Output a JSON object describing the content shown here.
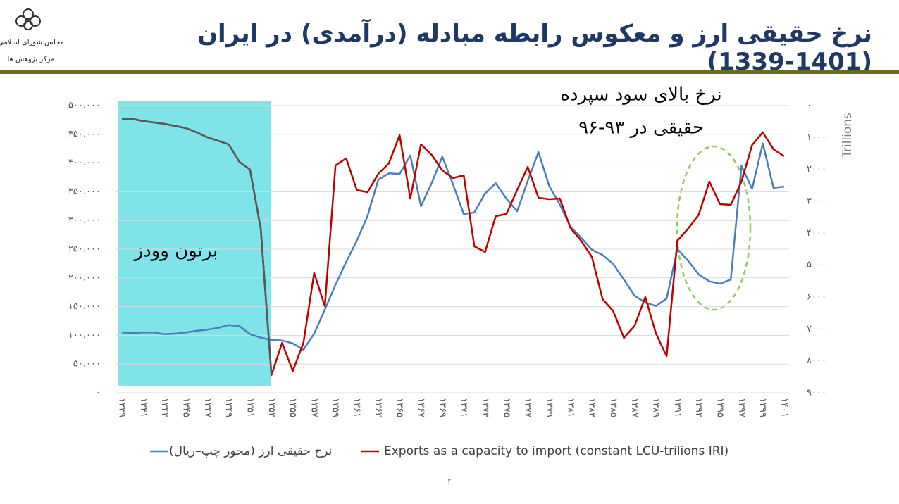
{
  "header": {
    "title": "نرخ حقیقی ارز و معکوس رابطه مبادله (درآمدی) در ایران (1401-1339)",
    "logo_line1": "مجلس شورای اسلامی",
    "logo_line2": "مرکز پژوهش ها"
  },
  "page_number": "۲",
  "chart_data": {
    "type": "line",
    "annotations": [
      "برتون وودز",
      "نرخ بالای سود سپرده",
      "حقیقی در ۹۳-۹۶"
    ],
    "y2_label": "Trillions",
    "categories": [
      "۱۳۳۹",
      null,
      "۱۳۴۱",
      null,
      "۱۳۴۳",
      null,
      "۱۳۴۵",
      null,
      "۱۳۴۷",
      null,
      "۱۳۴۹",
      null,
      "۱۳۵۱",
      null,
      "۱۳۵۳",
      null,
      "۱۳۵۵",
      null,
      "۱۳۵۷",
      null,
      "۱۳۵۹",
      null,
      "۱۳۶۱",
      null,
      "۱۳۶۳",
      null,
      "۱۳۶۵",
      null,
      "۱۳۶۷",
      null,
      "۱۳۶۹",
      null,
      "۱۳۷۱",
      null,
      "۱۳۷۳",
      null,
      "۱۳۷۵",
      null,
      "۱۳۷۷",
      null,
      "۱۳۷۹",
      null,
      "۱۳۸۱",
      null,
      "۱۳۸۳",
      null,
      "۱۳۸۵",
      null,
      "۱۳۸۷",
      null,
      "۱۳۸۹",
      null,
      "۱۳۹۱",
      null,
      "۱۳۹۳",
      null,
      "۱۳۹۵",
      null,
      "۱۳۹۷",
      null,
      "۱۳۹۹",
      null,
      "۱۴۰۱"
    ],
    "series": [
      {
        "name": "نرخ حقیقی ارز (محور چپ–ریال)",
        "color": "#4a7ebb",
        "axis": "y",
        "values": [
          105000,
          104000,
          105000,
          105000,
          102000,
          103000,
          105000,
          108000,
          110000,
          113000,
          118000,
          116000,
          102000,
          96000,
          92000,
          91000,
          86000,
          75000,
          103000,
          145000,
          188000,
          228000,
          265000,
          308000,
          371000,
          382000,
          381000,
          413000,
          325000,
          365000,
          411000,
          363000,
          311000,
          314000,
          347000,
          365000,
          338000,
          316000,
          369000,
          419000,
          360000,
          328000,
          289000,
          270000,
          249000,
          240000,
          224000,
          197000,
          169000,
          157000,
          151000,
          164000,
          250000,
          230000,
          206000,
          194000,
          190000,
          197000,
          395000,
          355000,
          434000,
          357000,
          359000
        ]
      },
      {
        "name": "Exports as a capacity to import (constant LCU-trilions IRI)",
        "color": "#c00000",
        "shaded_color": "#595959",
        "axis": "y2",
        "values": [
          419,
          419,
          485,
          529,
          574,
          640,
          706,
          838,
          993,
          1103,
          1213,
          1765,
          2007,
          3860,
          8449,
          7434,
          8316,
          7434,
          5250,
          6287,
          1875,
          1654,
          2647,
          2713,
          2140,
          1809,
          926,
          2912,
          1213,
          1544,
          2029,
          2272,
          2184,
          4412,
          4588,
          3463,
          3397,
          2647,
          1919,
          2890,
          2934,
          2912,
          3838,
          4235,
          4743,
          6066,
          6441,
          7279,
          6904,
          6000,
          7147,
          7853,
          4235,
          3860,
          3419,
          2382,
          3088,
          3110,
          2382,
          1235,
          838,
          1368,
          1588
        ]
      }
    ],
    "ylim": [
      0,
      500000
    ],
    "yticks": [
      {
        "value": 0,
        "label": "۰"
      },
      {
        "value": 50000,
        "label": "۵۰،۰۰۰"
      },
      {
        "value": 100000,
        "label": "۱۰۰،۰۰۰"
      },
      {
        "value": 150000,
        "label": "۱۵۰،۰۰۰"
      },
      {
        "value": 200000,
        "label": "۲۰۰،۰۰۰"
      },
      {
        "value": 250000,
        "label": "۲۵۰،۰۰۰"
      },
      {
        "value": 300000,
        "label": "۳۰۰،۰۰۰"
      },
      {
        "value": 350000,
        "label": "۳۵۰،۰۰۰"
      },
      {
        "value": 400000,
        "label": "۴۰۰،۰۰۰"
      },
      {
        "value": 450000,
        "label": "۴۵۰،۰۰۰"
      },
      {
        "value": 500000,
        "label": "۵۰۰،۰۰۰"
      }
    ],
    "y2lim": [
      0,
      9000
    ],
    "y2_reversed": true,
    "y2ticks": [
      {
        "value": 0,
        "label": "۰"
      },
      {
        "value": 1000,
        "label": "۱۰۰۰"
      },
      {
        "value": 2000,
        "label": "۲۰۰۰"
      },
      {
        "value": 3000,
        "label": "۳۰۰۰"
      },
      {
        "value": 4000,
        "label": "۴۰۰۰"
      },
      {
        "value": 5000,
        "label": "۵۰۰۰"
      },
      {
        "value": 6000,
        "label": "۶۰۰۰"
      },
      {
        "value": 7000,
        "label": "۷۰۰۰"
      },
      {
        "value": 8000,
        "label": "۸۰۰۰"
      },
      {
        "value": 9000,
        "label": "۹۰۰۰"
      }
    ],
    "grid": true,
    "legend": "bottom"
  }
}
